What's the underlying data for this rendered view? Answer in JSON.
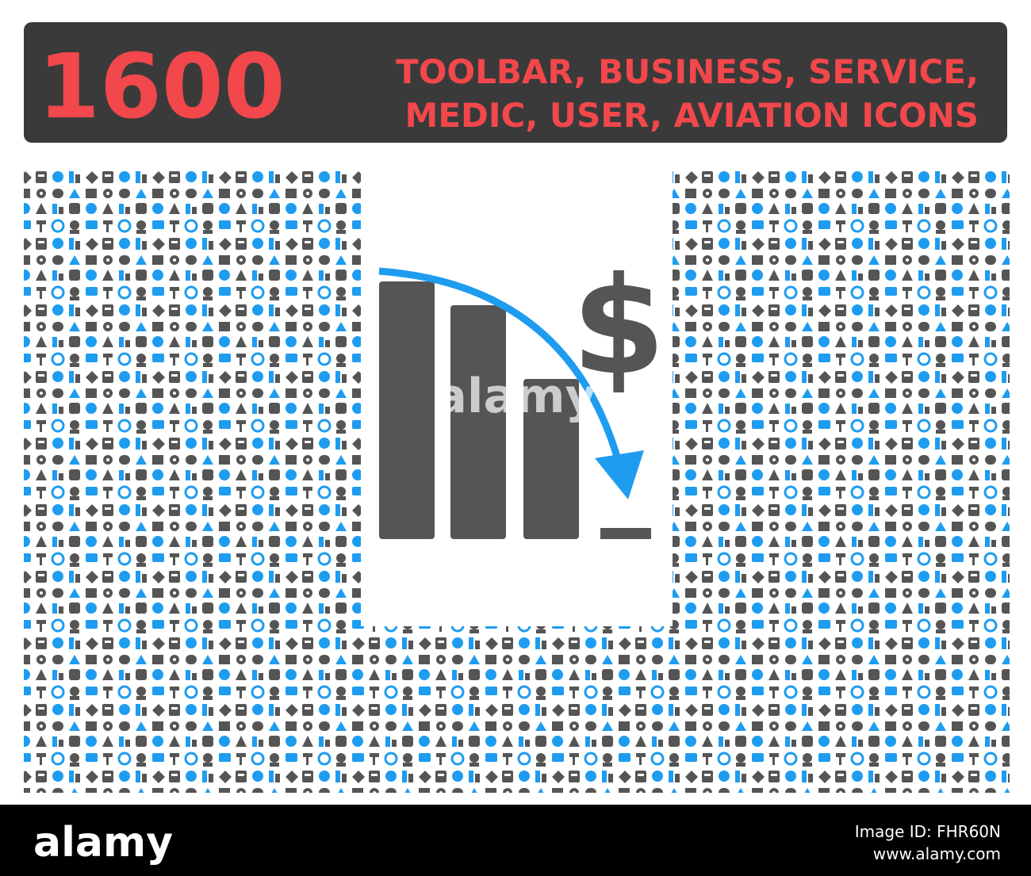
{
  "banner": {
    "count": "1600",
    "line1": "TOOLBAR, BUSINESS, SERVICE,",
    "line2": "MEDIC, USER, AVIATION ICONS"
  },
  "icon": {
    "symbol": "$"
  },
  "watermark": "alamy",
  "footer": {
    "brand": "alamy",
    "image_id": "Image ID: FHR60N",
    "url": "www.alamy.com"
  }
}
